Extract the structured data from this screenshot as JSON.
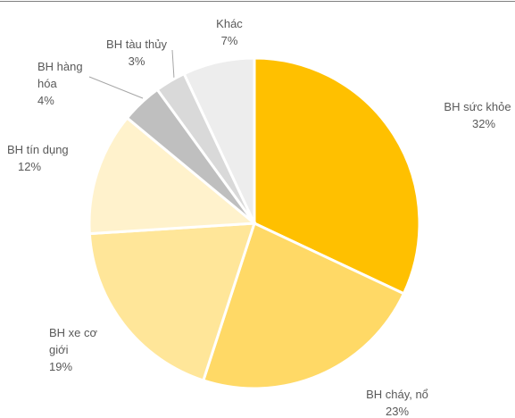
{
  "chart_data": {
    "type": "pie",
    "categories": [
      "BH sức khỏe",
      "BH cháy, nổ",
      "BH xe cơ giới",
      "BH tín dụng",
      "BH hàng hóa",
      "BH tàu thủy",
      "Khác"
    ],
    "values": [
      32,
      23,
      19,
      12,
      4,
      3,
      7
    ],
    "value_labels": [
      "32%",
      "23%",
      "19%",
      "12%",
      "4%",
      "3%",
      "7%"
    ],
    "colors": [
      "#FFC000",
      "#FFD966",
      "#FFE699",
      "#FFF2CC",
      "#BFBFBF",
      "#D9D9D9",
      "#EDEDED"
    ]
  }
}
